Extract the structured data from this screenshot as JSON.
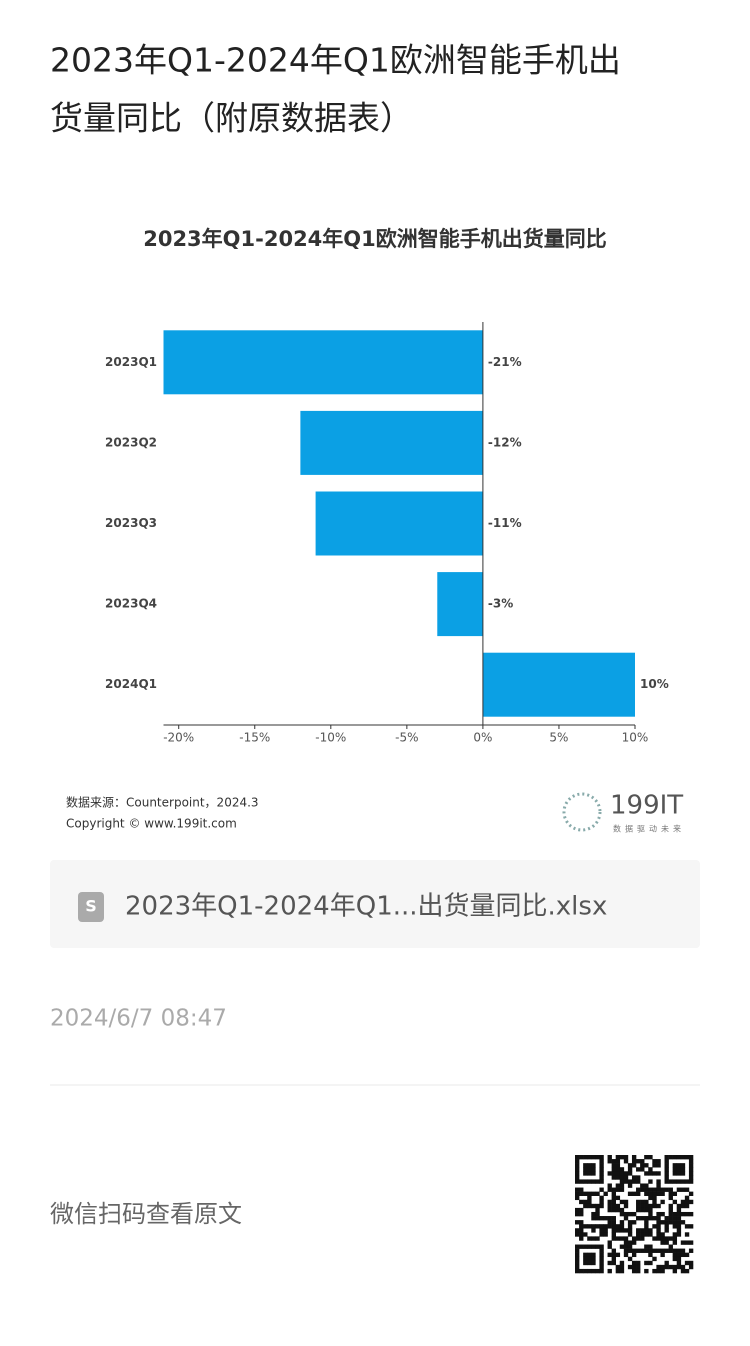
{
  "header": {
    "title": "2023年Q1-2024年Q1欧洲智能手机出货量同比（附原数据表）"
  },
  "chart_data": {
    "type": "barh",
    "title": "2023年Q1-2024年Q1欧洲智能手机出货量同比",
    "categories": [
      "2023Q1",
      "2023Q2",
      "2023Q3",
      "2023Q4",
      "2024Q1"
    ],
    "values": [
      -21,
      -12,
      -11,
      -3,
      10
    ],
    "value_labels": [
      "-21%",
      "-12%",
      "-11%",
      "-3%",
      "10%"
    ],
    "color": "#0ba0e4",
    "xlim": [
      -21,
      10
    ],
    "xticks": [
      {
        "value": -20,
        "label": "-20%"
      },
      {
        "value": -15,
        "label": "-15%"
      },
      {
        "value": -10,
        "label": "-10%"
      },
      {
        "value": -5,
        "label": "-5%"
      },
      {
        "value": 0,
        "label": "0%"
      },
      {
        "value": 5,
        "label": "5%"
      },
      {
        "value": 10,
        "label": "10%"
      }
    ]
  },
  "source": {
    "line1": "数据来源：Counterpoint，2024.3",
    "line2": "Copyright © www.199it.com",
    "logo": "199IT",
    "slogan": "数据驱动未来"
  },
  "attachment": {
    "filename": "2023年Q1-2024年Q1...出货量同比.xlsx"
  },
  "date": "2024/6/7 08:47",
  "footer": {
    "qr_prompt": "微信扫码查看原文"
  }
}
